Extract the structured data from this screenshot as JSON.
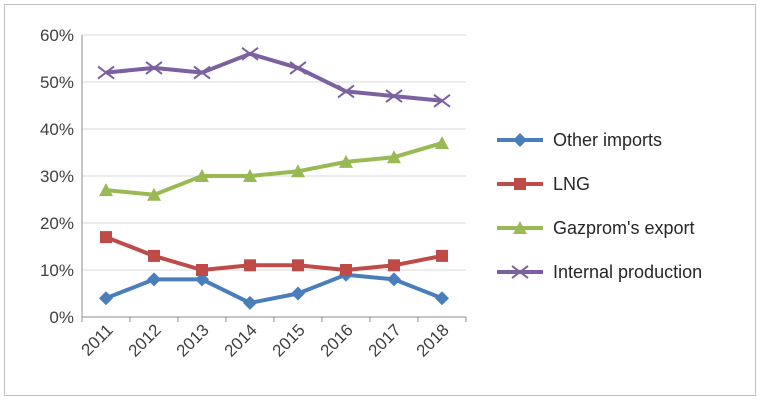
{
  "chart_data": {
    "type": "line",
    "title": "",
    "xlabel": "",
    "ylabel": "",
    "categories": [
      "2011",
      "2012",
      "2013",
      "2014",
      "2015",
      "2016",
      "2017",
      "2018"
    ],
    "ylim": [
      0,
      60
    ],
    "y_ticks": [
      "0%",
      "10%",
      "20%",
      "30%",
      "40%",
      "50%",
      "60%"
    ],
    "y_unit": "%",
    "grid": "horizontal",
    "legend": "right",
    "series": [
      {
        "name": "Other imports",
        "marker": "diamond",
        "color": "#4a7ebb",
        "values": [
          4,
          8,
          8,
          3,
          5,
          9,
          8,
          4
        ]
      },
      {
        "name": "LNG",
        "marker": "square",
        "color": "#be4b48",
        "values": [
          17,
          13,
          10,
          11,
          11,
          10,
          11,
          13
        ]
      },
      {
        "name": "Gazprom's export",
        "marker": "triangle",
        "color": "#98b954",
        "values": [
          27,
          26,
          30,
          30,
          31,
          33,
          34,
          37
        ]
      },
      {
        "name": "Internal production",
        "marker": "x",
        "color": "#7d60a0",
        "values": [
          52,
          53,
          52,
          56,
          53,
          48,
          47,
          46
        ]
      }
    ]
  }
}
